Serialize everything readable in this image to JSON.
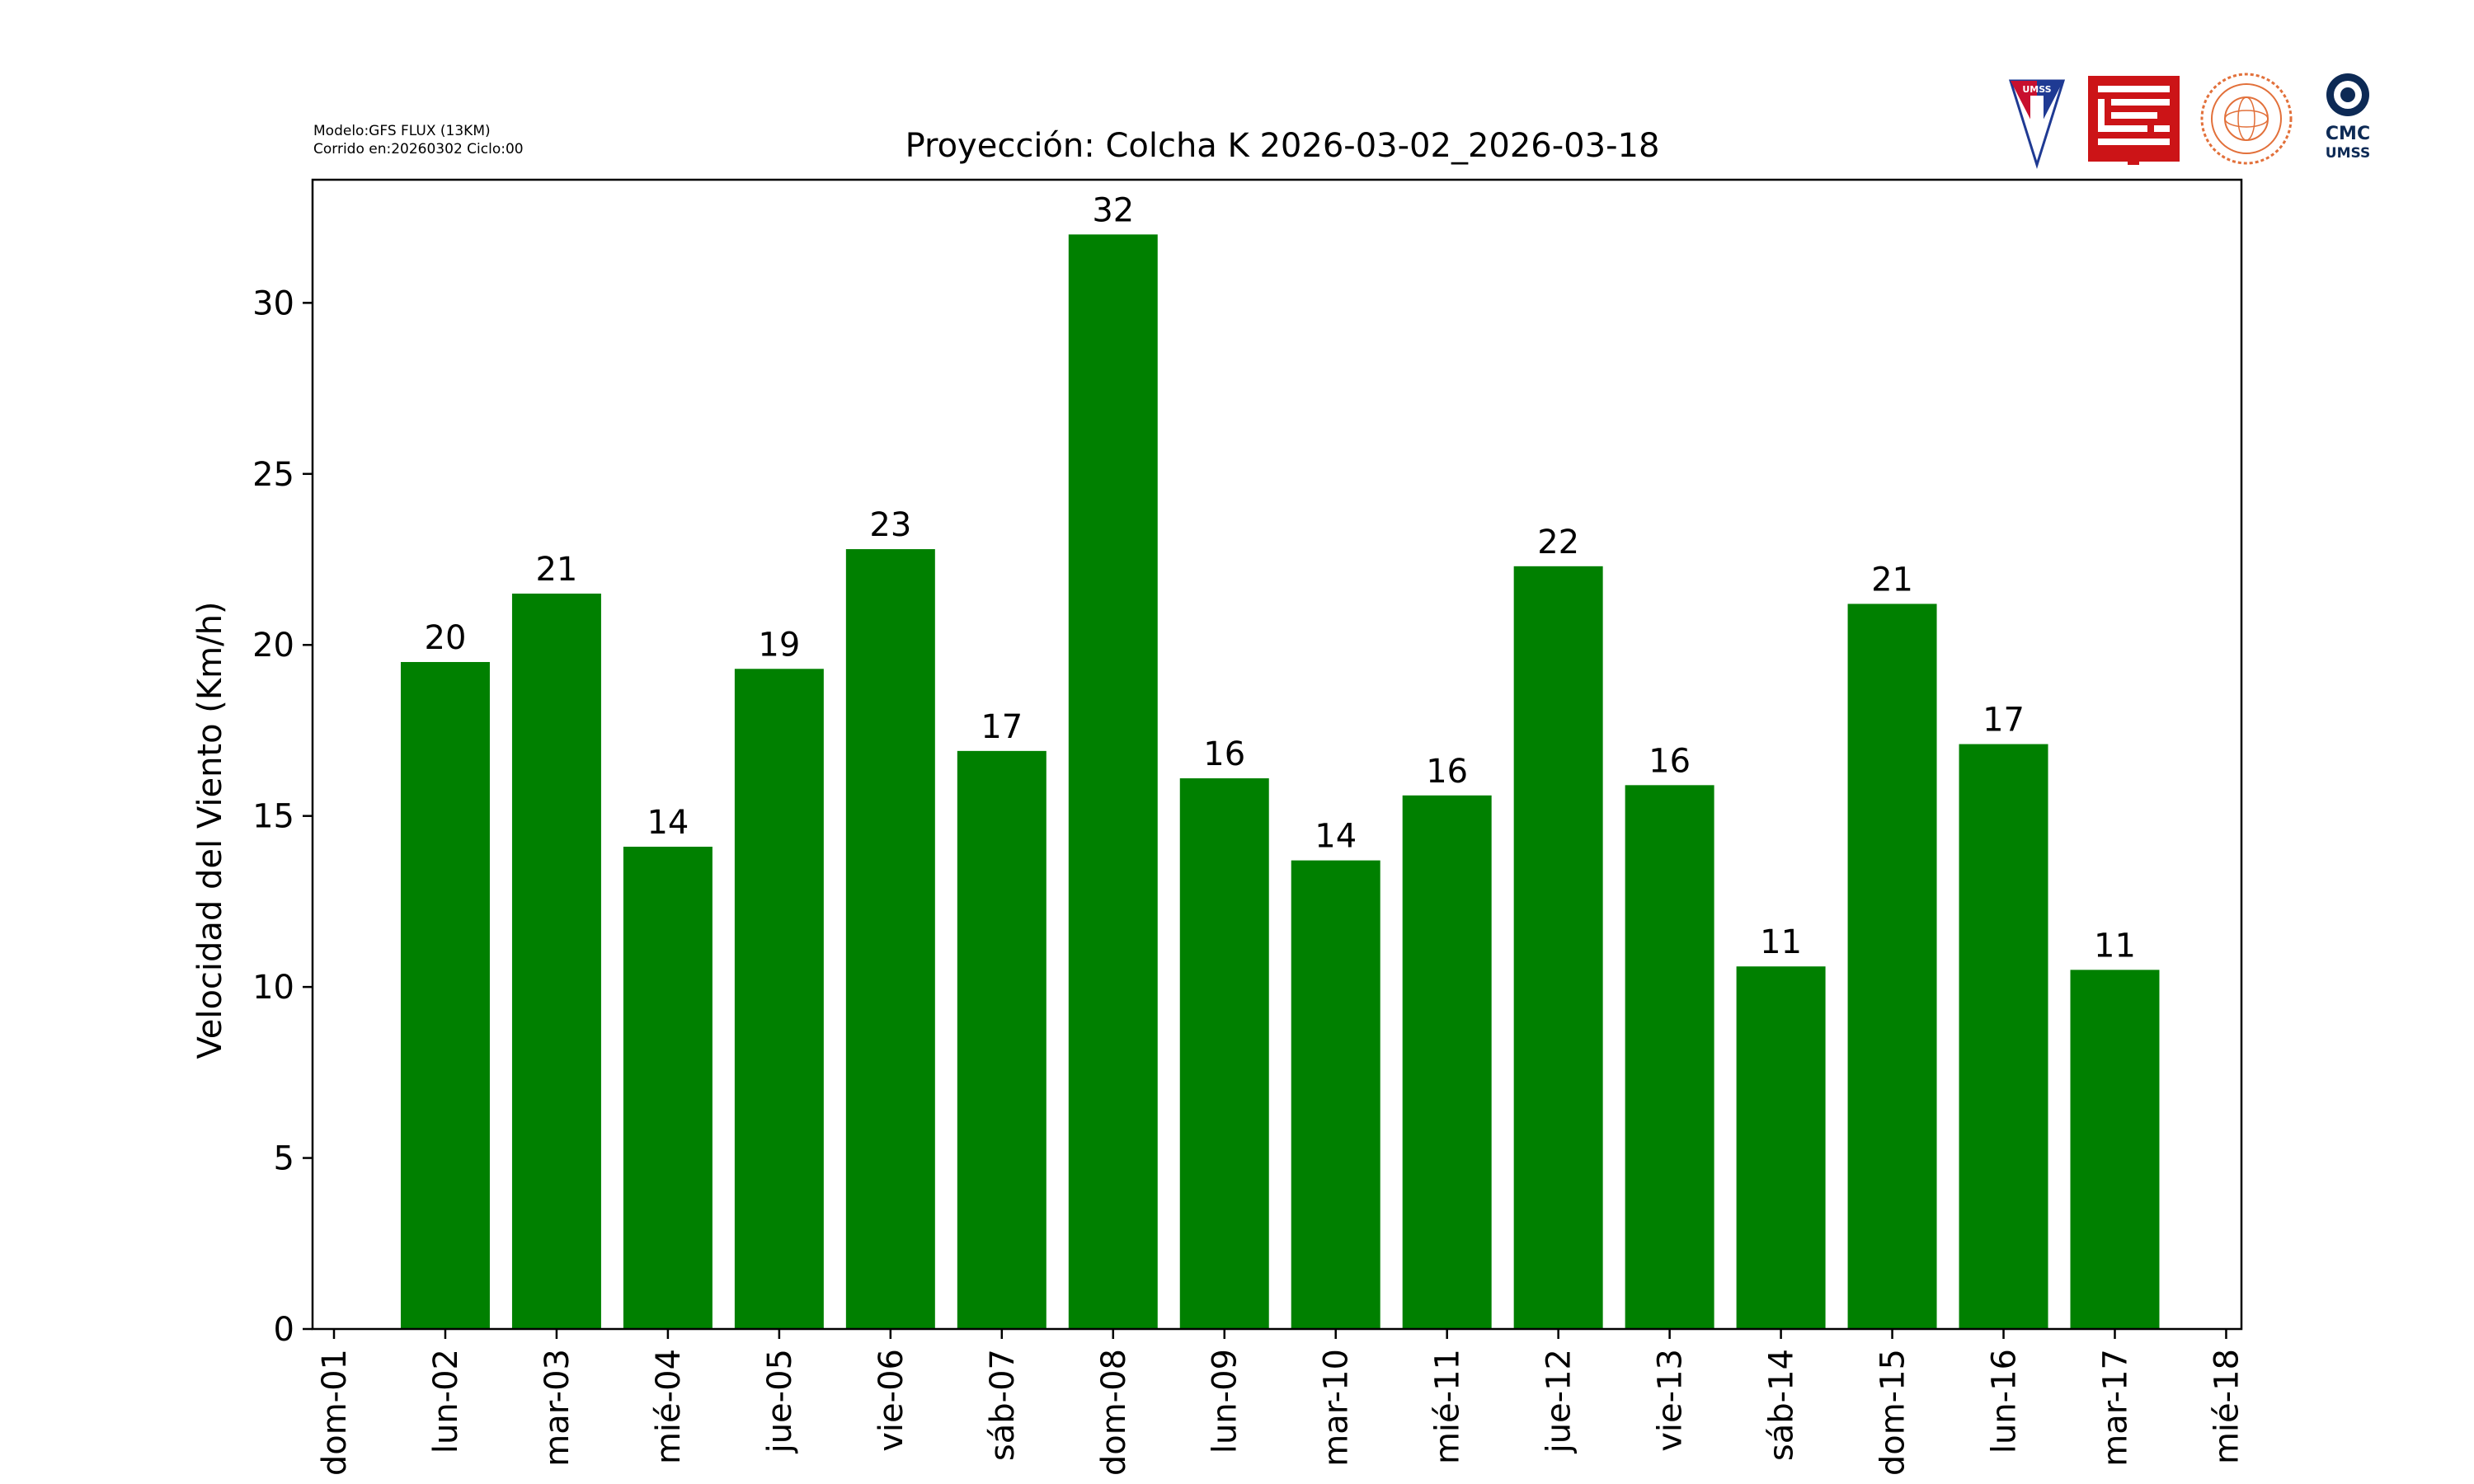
{
  "header": {
    "model_line": "Modelo:GFS FLUX (13KM)",
    "run_line": "Corrido en:20260302 Ciclo:00"
  },
  "logos": {
    "umss_text": "UMSS",
    "cmc_text": "CMC",
    "cmc_sub": "UMSS"
  },
  "colors": {
    "bar": "#008000",
    "axis": "#000000",
    "umss_red": "#c8102e",
    "umss_blue": "#1f3a93",
    "fcyt_red": "#cc1417",
    "dept_orange": "#e2703a",
    "cmc_navy": "#0d2a55"
  },
  "chart_data": {
    "type": "bar",
    "title": "Proyección: Colcha K  2026-03-02_2026-03-18",
    "xlabel": "",
    "ylabel": "Velocidad del Viento (Km/h)",
    "x_ticks": [
      "dom-01",
      "lun-02",
      "mar-03",
      "mié-04",
      "jue-05",
      "vie-06",
      "sáb-07",
      "dom-08",
      "lun-09",
      "mar-10",
      "mié-11",
      "jue-12",
      "vie-13",
      "sáb-14",
      "dom-15",
      "lun-16",
      "mar-17",
      "mié-18"
    ],
    "categories": [
      "lun-02",
      "mar-03",
      "mié-04",
      "jue-05",
      "vie-06",
      "sáb-07",
      "dom-08",
      "lun-09",
      "mar-10",
      "mié-11",
      "jue-12",
      "vie-13",
      "sáb-14",
      "dom-15",
      "lun-16",
      "mar-17"
    ],
    "values": [
      19.5,
      21.5,
      14.1,
      19.3,
      22.8,
      16.9,
      32.0,
      16.1,
      13.7,
      15.6,
      22.3,
      15.9,
      10.6,
      21.2,
      17.1,
      10.5
    ],
    "data_labels": [
      "20",
      "21",
      "14",
      "19",
      "23",
      "17",
      "32",
      "16",
      "14",
      "16",
      "22",
      "16",
      "11",
      "21",
      "17",
      "11"
    ],
    "y_ticks": [
      0,
      5,
      10,
      15,
      20,
      25,
      30
    ],
    "ylim": [
      0,
      33.6
    ],
    "grid": false,
    "legend": "none"
  }
}
